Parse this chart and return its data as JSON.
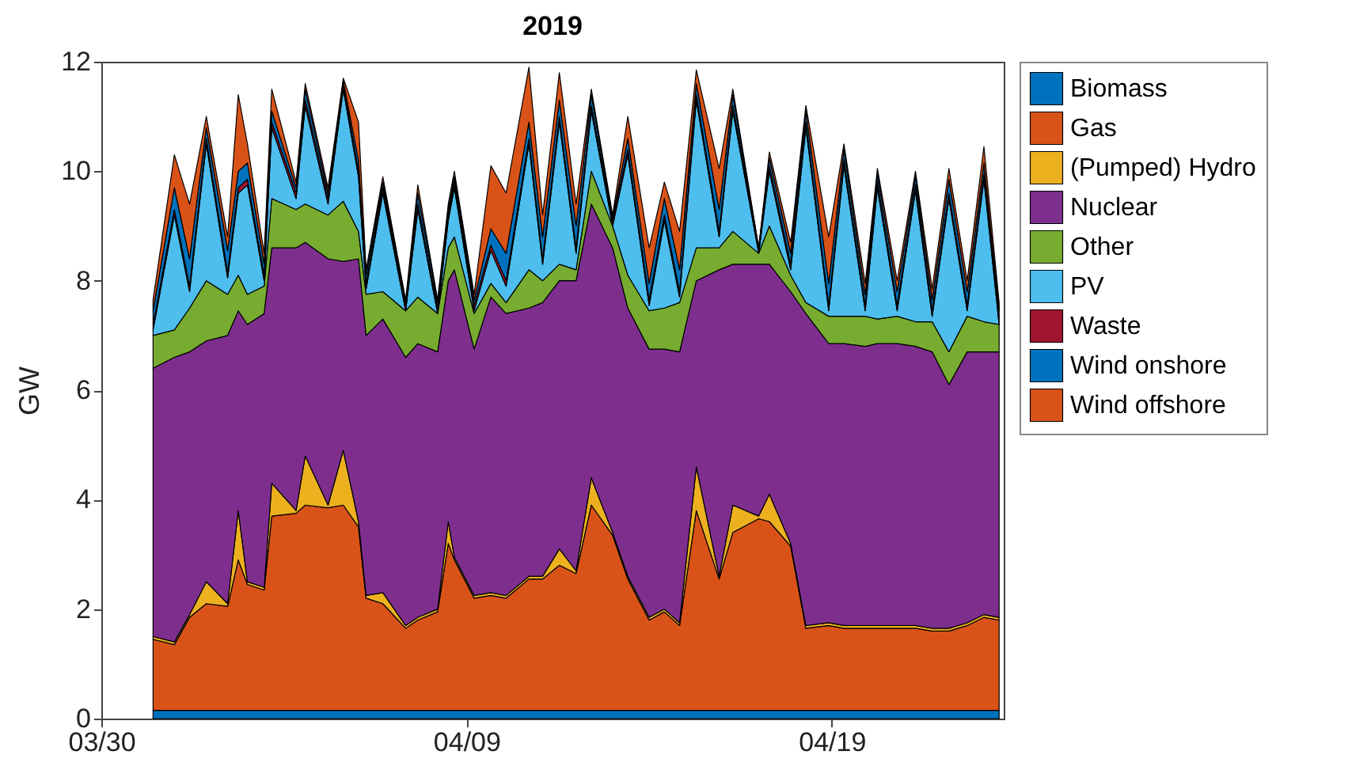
{
  "chart_data": {
    "type": "area",
    "title": "2019",
    "ylabel": "GW",
    "stacked": true,
    "legend": "right",
    "grid": false,
    "x": [
      "--03-31T10:00",
      "--04-01T00:00",
      "--04-01T10:00",
      "--04-01T21:00",
      "--04-02T11:00",
      "--04-02T18:00",
      "--04-03T00:00",
      "--04-03T11:00",
      "--04-03T16:00",
      "--04-04T08:00",
      "--04-04T14:00",
      "--04-05T05:00",
      "--04-05T15:00",
      "--04-06T01:00",
      "--04-06T06:00",
      "--04-06T17:00",
      "--04-07T08:00",
      "--04-07T16:00",
      "--04-08T05:00",
      "--04-08T12:00",
      "--04-08T16:00",
      "--04-09T05:00",
      "--04-09T16:00",
      "--04-10T02:00",
      "--04-10T17:00",
      "--04-11T02:00",
      "--04-11T13:00",
      "--04-12T00:00",
      "--04-12T10:00",
      "--04-13T00:00",
      "--04-13T10:00",
      "--04-14T00:00",
      "--04-14T10:00",
      "--04-14T20:00",
      "--04-15T07:00",
      "--04-15T22:00",
      "--04-16T07:00",
      "--04-17T00:00",
      "--04-17T07:00",
      "--04-17T21:00",
      "--04-18T07:00",
      "--04-18T22:00",
      "--04-19T08:00",
      "--04-19T22:00",
      "--04-20T06:00",
      "--04-20T19:00",
      "--04-21T07:00",
      "--04-21T18:00",
      "--04-22T05:00",
      "--04-22T17:00",
      "--04-23T04:00",
      "--04-23T14:00"
    ],
    "xlim": [
      "--03-30T00:00",
      "--04-23T17:00"
    ],
    "xticks": [
      {
        "value": "--03-30",
        "label": "03/30"
      },
      {
        "value": "--04-09",
        "label": "04/09"
      },
      {
        "value": "--04-19",
        "label": "04/19"
      }
    ],
    "ylim": [
      0,
      12
    ],
    "yticks": [
      0,
      2,
      4,
      6,
      8,
      10,
      12
    ],
    "series": [
      {
        "name": "Biomass",
        "color": "#0072bd",
        "values": [
          0.15,
          0.15,
          0.15,
          0.15,
          0.15,
          0.15,
          0.15,
          0.15,
          0.15,
          0.15,
          0.15,
          0.15,
          0.15,
          0.15,
          0.15,
          0.15,
          0.15,
          0.15,
          0.15,
          0.15,
          0.15,
          0.15,
          0.15,
          0.15,
          0.15,
          0.15,
          0.15,
          0.15,
          0.15,
          0.15,
          0.15,
          0.15,
          0.15,
          0.15,
          0.15,
          0.15,
          0.15,
          0.15,
          0.15,
          0.15,
          0.15,
          0.15,
          0.15,
          0.15,
          0.15,
          0.15,
          0.15,
          0.15,
          0.15,
          0.15,
          0.15,
          0.15
        ]
      },
      {
        "name": "Gas",
        "color": "#d95319",
        "values": [
          1.3,
          1.2,
          1.7,
          1.95,
          1.9,
          2.75,
          2.3,
          2.2,
          3.55,
          3.6,
          3.75,
          3.7,
          3.75,
          3.35,
          2.05,
          1.95,
          1.5,
          1.65,
          1.8,
          3.05,
          2.75,
          2.05,
          2.1,
          2.05,
          2.4,
          2.4,
          2.65,
          2.5,
          3.75,
          3.2,
          2.4,
          1.65,
          1.8,
          1.55,
          3.65,
          2.4,
          3.25,
          3.5,
          3.45,
          3.0,
          1.5,
          1.55,
          1.5,
          1.5,
          1.5,
          1.5,
          1.5,
          1.45,
          1.45,
          1.55,
          1.7,
          1.65
        ]
      },
      {
        "name": "(Pumped) Hydro",
        "color": "#edb120",
        "values": [
          0.05,
          0.05,
          0.05,
          0.4,
          0.05,
          0.9,
          0.05,
          0.05,
          0.6,
          0.05,
          0.9,
          0.05,
          1.0,
          0.1,
          0.05,
          0.2,
          0.05,
          0.05,
          0.05,
          0.4,
          0.05,
          0.05,
          0.05,
          0.05,
          0.05,
          0.05,
          0.3,
          0.05,
          0.5,
          0.05,
          0.05,
          0.05,
          0.05,
          0.05,
          0.8,
          0.05,
          0.5,
          0.05,
          0.5,
          0.05,
          0.05,
          0.05,
          0.05,
          0.05,
          0.05,
          0.05,
          0.05,
          0.05,
          0.05,
          0.05,
          0.05,
          0.05
        ]
      },
      {
        "name": "Nuclear",
        "color": "#7e2f8e",
        "values": [
          4.9,
          5.2,
          4.8,
          4.4,
          4.9,
          3.65,
          4.7,
          5.0,
          4.3,
          4.8,
          3.9,
          4.5,
          3.45,
          4.8,
          4.75,
          5.0,
          4.9,
          5.0,
          4.7,
          4.4,
          5.25,
          4.5,
          5.4,
          5.15,
          4.9,
          5.0,
          4.9,
          5.3,
          5.0,
          5.2,
          4.9,
          4.9,
          4.75,
          4.95,
          3.4,
          5.6,
          4.4,
          4.6,
          4.2,
          4.6,
          5.7,
          5.1,
          5.15,
          5.1,
          5.15,
          5.15,
          5.1,
          5.05,
          4.45,
          4.95,
          4.8,
          4.85
        ]
      },
      {
        "name": "Other",
        "color": "#77ac30",
        "values": [
          0.6,
          0.5,
          0.8,
          1.1,
          0.75,
          0.65,
          0.55,
          0.5,
          0.9,
          0.7,
          0.7,
          0.8,
          1.1,
          0.5,
          0.75,
          0.5,
          0.85,
          0.85,
          0.7,
          0.6,
          0.6,
          0.65,
          0.25,
          0.2,
          0.7,
          0.4,
          0.3,
          0.2,
          0.6,
          0.4,
          0.6,
          0.7,
          0.75,
          0.9,
          0.6,
          0.4,
          0.6,
          0.2,
          0.7,
          0.3,
          0.2,
          0.5,
          0.5,
          0.55,
          0.45,
          0.5,
          0.45,
          0.55,
          0.6,
          0.65,
          0.55,
          0.5
        ]
      },
      {
        "name": "PV",
        "color": "#4dbeee",
        "values": [
          0.1,
          2.1,
          0.3,
          2.5,
          0.3,
          1.5,
          2.0,
          0.1,
          1.3,
          0.2,
          1.8,
          0.2,
          2.05,
          1.0,
          0.1,
          1.8,
          0,
          1.6,
          0,
          0.5,
          0.9,
          0.05,
          0.6,
          0.3,
          2.3,
          0.3,
          2.6,
          0.3,
          1.1,
          0,
          2.2,
          0.1,
          1.6,
          0.1,
          2.7,
          0.2,
          2.2,
          0,
          1.0,
          0.1,
          3.2,
          0.1,
          2.75,
          0.1,
          2.4,
          0.1,
          2.4,
          0.1,
          2.8,
          0.1,
          2.6,
          0
        ]
      },
      {
        "name": "Waste",
        "color": "#a2142f",
        "values": [
          0.1,
          0.1,
          0.1,
          0.1,
          0.1,
          0.1,
          0.1,
          0.1,
          0.1,
          0.1,
          0.1,
          0.1,
          0.1,
          0.1,
          0.1,
          0.1,
          0.1,
          0.1,
          0.1,
          0.1,
          0.1,
          0.1,
          0.1,
          0.1,
          0.1,
          0.1,
          0.1,
          0.1,
          0.1,
          0.1,
          0.1,
          0.1,
          0.1,
          0.1,
          0.1,
          0.1,
          0.1,
          0.1,
          0.1,
          0.1,
          0.1,
          0.1,
          0.1,
          0.1,
          0.1,
          0.1,
          0.1,
          0.1,
          0.1,
          0.1,
          0.1,
          0.1
        ]
      },
      {
        "name": "Wind onshore",
        "color": "#0072bd",
        "values": [
          0.25,
          0.4,
          0.5,
          0.2,
          0.4,
          0.3,
          0.3,
          0.2,
          0.2,
          0.1,
          0.2,
          0.1,
          0.05,
          0.2,
          0.15,
          0.1,
          0.05,
          0.2,
          0.1,
          0.1,
          0.1,
          0.1,
          0.3,
          0.5,
          0.3,
          0.4,
          0.3,
          0.4,
          0.2,
          0.05,
          0.2,
          0.3,
          0.3,
          0.4,
          0.2,
          0.4,
          0.2,
          0,
          0.15,
          0.2,
          0.2,
          0.4,
          0.2,
          0.2,
          0.15,
          0.25,
          0.15,
          0.2,
          0.25,
          0.25,
          0.2,
          0.15
        ]
      },
      {
        "name": "Wind offshore",
        "color": "#d95319",
        "values": [
          0.2,
          0.6,
          1.0,
          0.2,
          0.25,
          1.4,
          0.35,
          0.2,
          0.4,
          0.1,
          0.1,
          0.1,
          0.05,
          0.7,
          0.1,
          0.1,
          0.05,
          0.15,
          0.05,
          0.1,
          0.1,
          0.1,
          1.15,
          1.1,
          1.0,
          0.4,
          0.5,
          0.4,
          0.1,
          0.05,
          0.4,
          0.65,
          0.3,
          0.7,
          0.25,
          0.75,
          0.1,
          0,
          0.1,
          0.2,
          0.1,
          0.85,
          0.1,
          0.2,
          0.1,
          0.2,
          0.1,
          0.2,
          0.2,
          0.2,
          0.3,
          0.15
        ]
      }
    ]
  }
}
